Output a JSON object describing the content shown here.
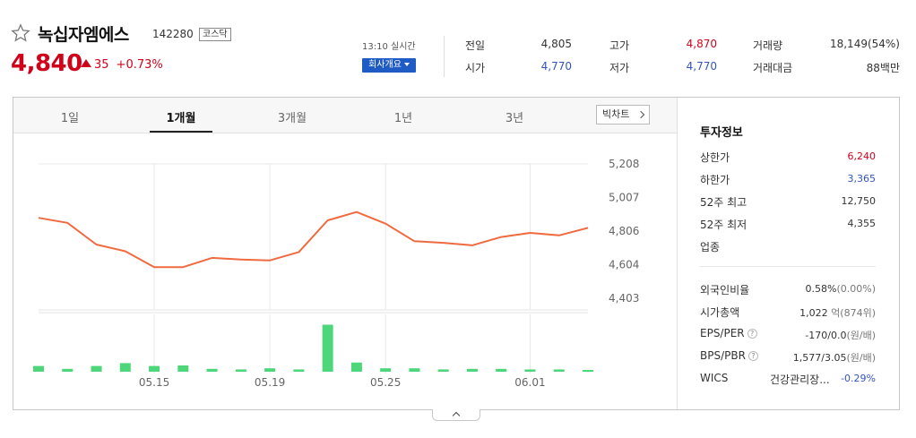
{
  "header": {
    "name": "녹십자엠에스",
    "code": "142280",
    "market": "코스닥",
    "price": "4,840",
    "change_amount": "35",
    "change_percent": "+0.73%",
    "realtime": "13:10 실시간",
    "company_button": "회사개요"
  },
  "quote": {
    "prev_close_label": "전일",
    "prev_close": "4,805",
    "open_label": "시가",
    "open": "4,770",
    "high_label": "고가",
    "high": "4,870",
    "low_label": "저가",
    "low": "4,770",
    "volume_label": "거래량",
    "volume": "18,149(54%)",
    "value_label": "거래대금",
    "value": "88백만"
  },
  "tabs": [
    "1일",
    "1개월",
    "3개월",
    "1년",
    "3년"
  ],
  "active_tab": "1개월",
  "big_chart_button": "빅차트",
  "info": {
    "title": "투자정보",
    "upper_limit_label": "상한가",
    "upper_limit": "6,240",
    "lower_limit_label": "하한가",
    "lower_limit": "3,365",
    "high52_label": "52주 최고",
    "high52": "12,750",
    "low52_label": "52주 최저",
    "low52": "4,355",
    "sector_label": "업종",
    "foreign_label": "외국인비율",
    "foreign_value": "0.58%",
    "foreign_sub": "(0.00%)",
    "mcap_label": "시가총액",
    "mcap_value": "1,022",
    "mcap_unit": "억",
    "mcap_rank": "(874위)",
    "eps_label": "EPS/PER",
    "eps_value": "-170/0.0",
    "eps_unit": "(원/배)",
    "bps_label": "BPS/PBR",
    "bps_value": "1,577/3.05",
    "bps_unit": "(원/배)",
    "wics_label": "WICS",
    "wics_name": "건강관리장...",
    "wics_change": "-0.29%",
    "help_glyph": "?"
  },
  "colors": {
    "up": "#d0021b",
    "down": "#3355bb",
    "line": "#f06a40",
    "volume": "#4dd67a",
    "accent": "#1f5bc5"
  },
  "chart_data": {
    "type": "line",
    "price_series": {
      "values": [
        4885,
        4855,
        4725,
        4685,
        4590,
        4590,
        4645,
        4635,
        4630,
        4680,
        4870,
        4920,
        4850,
        4745,
        4735,
        4720,
        4770,
        4795,
        4780,
        4825
      ]
    },
    "volume_series": {
      "values": [
        10,
        5,
        10,
        15,
        10,
        11,
        5,
        4,
        6,
        4,
        82,
        16,
        6,
        6,
        4,
        5,
        5,
        4,
        4,
        2
      ]
    },
    "y_ticks": [
      "5,208",
      "5,007",
      "4,806",
      "4,604",
      "4,403"
    ],
    "y_tick_values": [
      5208,
      5007,
      4806,
      4604,
      4403
    ],
    "ylim": [
      4403,
      5208
    ],
    "x_labels": [
      "05.15",
      "05.19",
      "05.25",
      "06.01"
    ],
    "x_label_index": [
      4,
      8,
      12,
      17
    ],
    "grid": true
  }
}
